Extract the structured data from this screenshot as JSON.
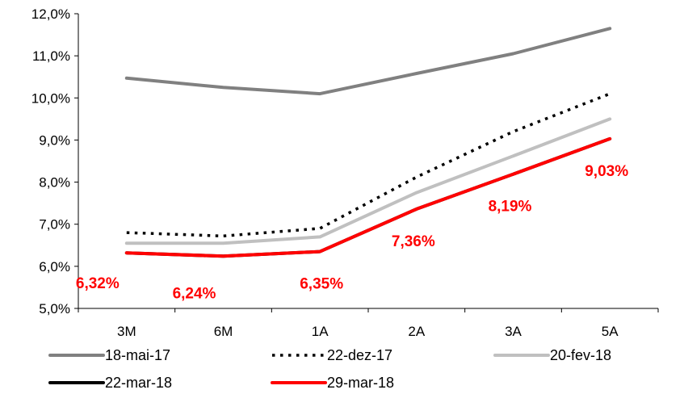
{
  "chart_data": {
    "type": "line",
    "categories": [
      "3M",
      "6M",
      "1A",
      "2A",
      "3A",
      "5A"
    ],
    "ylim": [
      5.0,
      12.0
    ],
    "yticks": [
      "5,0%",
      "6,0%",
      "7,0%",
      "8,0%",
      "9,0%",
      "10,0%",
      "11,0%",
      "12,0%"
    ],
    "grid": false,
    "legend_position": "bottom",
    "series": [
      {
        "name": "18-mai-17",
        "values": [
          10.47,
          10.25,
          10.1,
          10.58,
          11.05,
          11.65
        ],
        "color": "#808080",
        "style": "solid"
      },
      {
        "name": "22-dez-17",
        "values": [
          6.8,
          6.72,
          6.9,
          8.12,
          9.2,
          10.1
        ],
        "color": "#000000",
        "style": "dotted"
      },
      {
        "name": "20-fev-18",
        "values": [
          6.55,
          6.55,
          6.7,
          7.75,
          8.62,
          9.5
        ],
        "color": "#c0c0c0",
        "style": "solid"
      },
      {
        "name": "22-mar-18",
        "values": [
          6.32,
          6.24,
          6.35,
          7.36,
          8.19,
          9.03
        ],
        "color": "#000000",
        "style": "solid"
      },
      {
        "name": "29-mar-18",
        "values": [
          6.32,
          6.24,
          6.35,
          7.36,
          8.19,
          9.03
        ],
        "color": "#ff0000",
        "style": "solid"
      }
    ],
    "data_labels": [
      "6,32%",
      "6,24%",
      "6,35%",
      "7,36%",
      "8,19%",
      "9,03%"
    ]
  }
}
